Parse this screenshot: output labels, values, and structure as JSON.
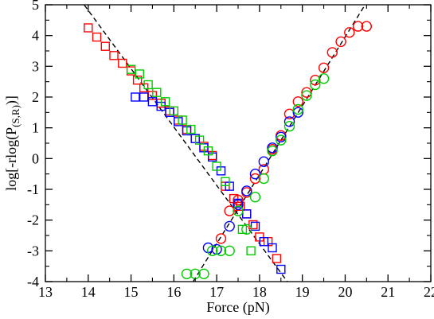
{
  "chart_data": {
    "type": "scatter",
    "title": "",
    "xlabel": "Force (pN)",
    "ylabel": "log[-rlog(P(S,R))]",
    "ylabel_parts": {
      "main": "log[-rlog(P",
      "sub": "(S,R)",
      "end": ")]"
    },
    "xlim": [
      13,
      22
    ],
    "ylim": [
      -4,
      5
    ],
    "xticks": [
      13,
      14,
      15,
      16,
      17,
      18,
      19,
      20,
      21,
      22
    ],
    "yticks": [
      -4,
      -3,
      -2,
      -1,
      0,
      1,
      2,
      3,
      4,
      5
    ],
    "grid": false,
    "legend": "none",
    "series": [
      {
        "marker": "square",
        "color": "#ff0000",
        "x": [
          14.0,
          14.2,
          14.4,
          14.6,
          14.8,
          15.0,
          15.15,
          15.3,
          15.5,
          15.7,
          15.9,
          16.1,
          16.3,
          16.5,
          16.7,
          16.9,
          17.2,
          17.4,
          17.55,
          17.7,
          17.85,
          18.0,
          18.2,
          18.4
        ],
        "y": [
          4.25,
          3.95,
          3.65,
          3.35,
          3.1,
          2.85,
          2.55,
          2.3,
          2.05,
          1.8,
          1.55,
          1.25,
          0.95,
          0.65,
          0.4,
          0.1,
          -0.9,
          -1.3,
          -1.55,
          -1.8,
          -2.15,
          -2.55,
          -2.7,
          -3.25
        ]
      },
      {
        "marker": "square",
        "color": "#0000ff",
        "x": [
          15.1,
          15.3,
          15.5,
          15.7,
          15.9,
          16.1,
          16.3,
          16.5,
          16.7,
          16.9,
          17.1,
          17.3,
          17.5,
          17.7,
          17.9,
          18.1,
          18.3,
          18.5
        ],
        "y": [
          2.0,
          2.0,
          1.85,
          1.7,
          1.5,
          1.2,
          0.9,
          0.65,
          0.35,
          0.05,
          -0.4,
          -0.9,
          -1.45,
          -1.8,
          -2.2,
          -2.7,
          -2.9,
          -3.6
        ]
      },
      {
        "marker": "square",
        "color": "#00cc00",
        "x": [
          15.0,
          15.2,
          15.4,
          15.6,
          15.8,
          16.0,
          16.2,
          16.4,
          16.6,
          16.8,
          17.0,
          17.2,
          17.6,
          17.8
        ],
        "y": [
          2.9,
          2.75,
          2.4,
          2.15,
          1.85,
          1.55,
          1.25,
          0.95,
          0.6,
          0.25,
          -0.25,
          -0.75,
          -2.3,
          -3.0
        ]
      },
      {
        "marker": "circle",
        "color": "#ff0000",
        "x": [
          17.1,
          17.3,
          17.5,
          17.7,
          17.9,
          18.1,
          18.3,
          18.5,
          18.7,
          18.9,
          19.1,
          19.3,
          19.5,
          19.7,
          19.9,
          20.1,
          20.3,
          20.5
        ],
        "y": [
          -2.6,
          -1.7,
          -1.35,
          -1.1,
          -0.65,
          -0.35,
          0.3,
          0.75,
          1.45,
          1.85,
          2.15,
          2.55,
          2.95,
          3.45,
          3.8,
          4.1,
          4.3,
          4.3
        ]
      },
      {
        "marker": "circle",
        "color": "#0000ff",
        "x": [
          16.8,
          17.0,
          17.3,
          17.5,
          17.7,
          17.9,
          18.1,
          18.3,
          18.5,
          18.7,
          18.9
        ],
        "y": [
          -2.9,
          -2.95,
          -2.2,
          -1.5,
          -1.05,
          -0.5,
          -0.1,
          0.35,
          0.7,
          1.2,
          1.5
        ]
      },
      {
        "marker": "circle",
        "color": "#00cc00",
        "x": [
          16.3,
          16.5,
          16.7,
          16.9,
          17.1,
          17.3,
          17.5,
          17.7,
          17.9,
          18.1,
          18.3,
          18.5,
          18.7,
          18.9,
          19.1,
          19.3,
          19.5
        ],
        "y": [
          -3.75,
          -3.75,
          -3.75,
          -3.0,
          -3.0,
          -3.0,
          -1.7,
          -2.3,
          -1.25,
          -0.65,
          0.25,
          0.6,
          1.05,
          1.6,
          2.05,
          2.4,
          2.6
        ]
      }
    ],
    "fit_lines": [
      {
        "style": "dashed",
        "color": "#000000",
        "points": [
          [
            13.8,
            5.2
          ],
          [
            18.65,
            -4.0
          ]
        ]
      },
      {
        "style": "dashed",
        "color": "#000000",
        "points": [
          [
            16.45,
            -4.0
          ],
          [
            20.6,
            5.3
          ]
        ]
      }
    ]
  }
}
